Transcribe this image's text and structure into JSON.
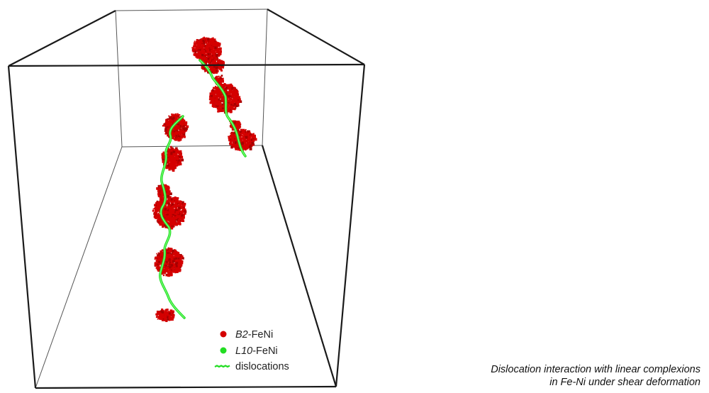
{
  "legend": {
    "items": [
      {
        "phase": "B2",
        "suffix": "-FeNi",
        "symbol": "dot",
        "color": "#d40000"
      },
      {
        "phase": "L10",
        "suffix": "-FeNi",
        "symbol": "dot",
        "color": "#22dd22"
      },
      {
        "phase": "",
        "suffix": "dislocations",
        "symbol": "line",
        "color": "#22dd22"
      }
    ]
  },
  "caption": {
    "line1": "Dislocation interaction with linear complexions",
    "line2": "in Fe-Ni under shear deformation"
  },
  "colors": {
    "box_edge_front": "#1a1a1a",
    "box_edge_back": "#555555",
    "precipitate": "#d40000",
    "dislocation": "#22dd22"
  }
}
